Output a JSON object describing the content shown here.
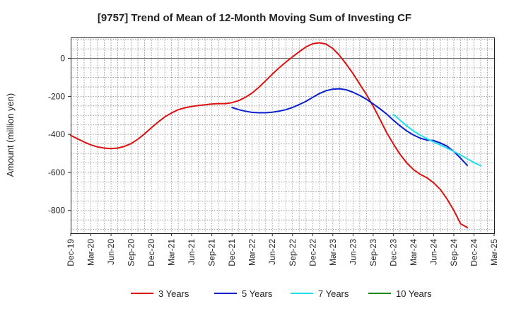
{
  "chart_data": {
    "type": "line",
    "title": "[9757]  Trend of Mean of 12-Month Moving Sum of Investing CF",
    "xlabel": "",
    "ylabel": "Amount (million yen)",
    "ylim": [
      -920,
      110
    ],
    "yticks": [
      0,
      -200,
      -400,
      -600,
      -800
    ],
    "grid": true,
    "legend_position": "bottom",
    "x_categories": [
      "Dec-19",
      "Mar-20",
      "Jun-20",
      "Sep-20",
      "Dec-20",
      "Mar-21",
      "Jun-21",
      "Sep-21",
      "Dec-21",
      "Mar-22",
      "Jun-22",
      "Sep-22",
      "Dec-22",
      "Mar-23",
      "Jun-23",
      "Sep-23",
      "Dec-23",
      "Mar-24",
      "Jun-24",
      "Sep-24",
      "Dec-24",
      "Mar-25"
    ],
    "series": [
      {
        "name": "3 Years",
        "color": "#dd1111",
        "start_index": 0,
        "values": [
          -405,
          -423,
          -440,
          -455,
          -466,
          -472,
          -475,
          -472,
          -463,
          -448,
          -425,
          -397,
          -365,
          -335,
          -308,
          -287,
          -270,
          -260,
          -253,
          -248,
          -244,
          -240,
          -238,
          -238,
          -233,
          -222,
          -205,
          -182,
          -152,
          -118,
          -83,
          -50,
          -20,
          8,
          35,
          60,
          77,
          82,
          75,
          52,
          15,
          -30,
          -80,
          -135,
          -190,
          -252,
          -320,
          -390,
          -450,
          -505,
          -550,
          -585,
          -610,
          -628,
          -655,
          -690,
          -740,
          -800,
          -870,
          -890
        ]
      },
      {
        "name": "5 Years",
        "color": "#0a1fcc",
        "start_index": 24,
        "values": [
          -258,
          -270,
          -278,
          -284,
          -286,
          -286,
          -283,
          -278,
          -270,
          -258,
          -243,
          -226,
          -205,
          -185,
          -170,
          -162,
          -160,
          -165,
          -178,
          -195,
          -215,
          -240,
          -265,
          -293,
          -325,
          -355,
          -382,
          -403,
          -420,
          -430,
          -432,
          -445,
          -462,
          -490,
          -525,
          -563
        ]
      },
      {
        "name": "7 Years",
        "color": "#22ddee",
        "start_index": 48,
        "values": [
          -295,
          -325,
          -355,
          -382,
          -403,
          -422,
          -440,
          -456,
          -472,
          -490,
          -508,
          -528,
          -548,
          -565
        ]
      },
      {
        "name": "10 Years",
        "color": "#1a8a1a",
        "start_index": 0,
        "values": []
      }
    ]
  }
}
